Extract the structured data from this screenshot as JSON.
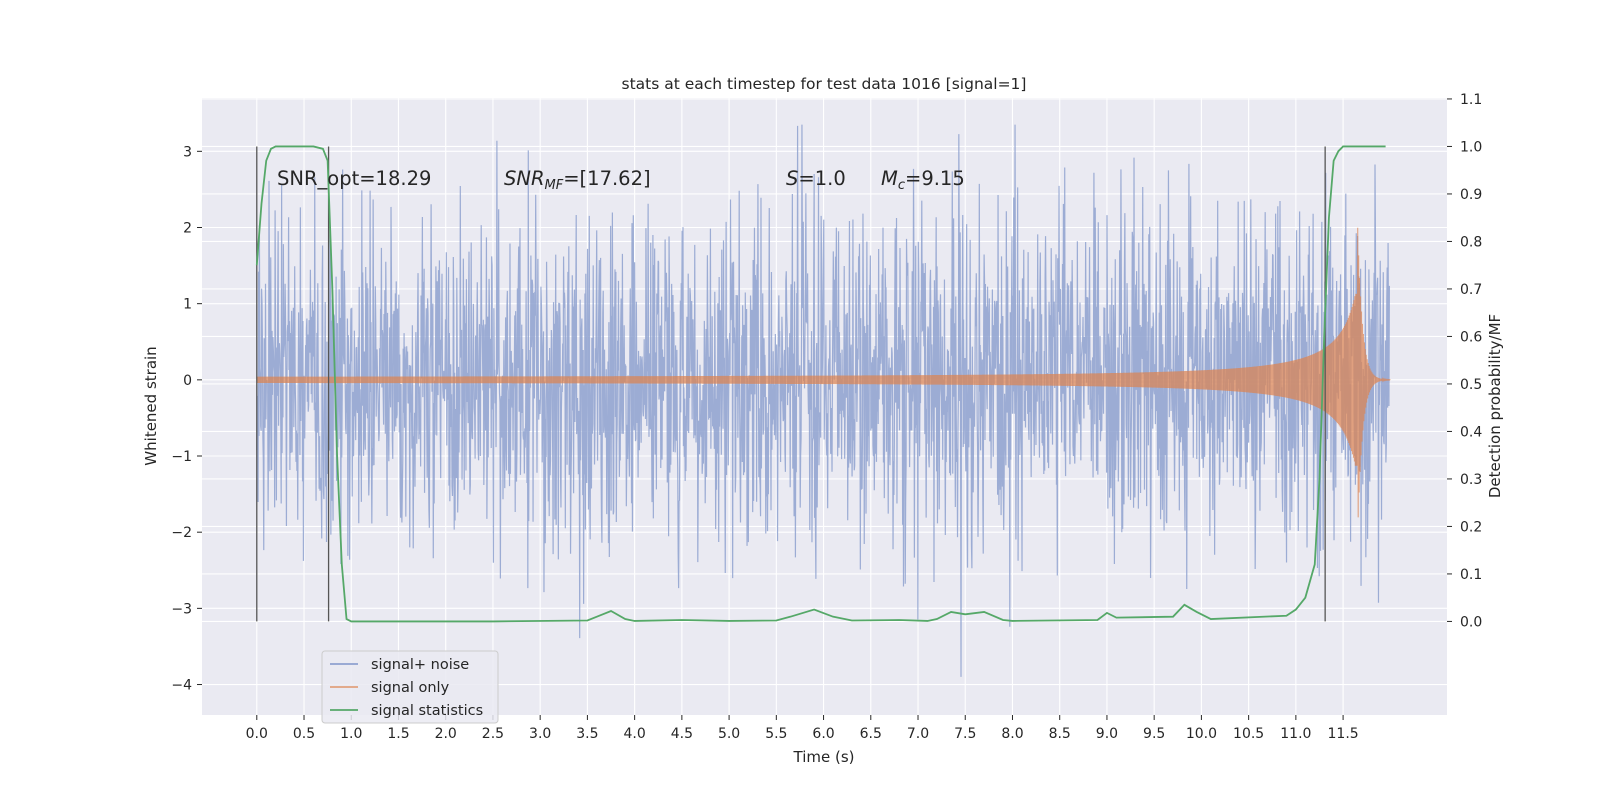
{
  "chart_data": {
    "type": "line",
    "title": "stats at each timestep for test data 1016 [signal=1]",
    "xlabel": "Time (s)",
    "ylabel": "Whitened strain",
    "y2label": "Detection probability/MF",
    "xlim": [
      -0.58,
      12.6
    ],
    "ylim": [
      -4.4,
      3.7
    ],
    "y2lim": [
      -0.197,
      1.102
    ],
    "x_ticks": [
      0.0,
      0.5,
      1.0,
      1.5,
      2.0,
      2.5,
      3.0,
      3.5,
      4.0,
      4.5,
      5.0,
      5.5,
      6.0,
      6.5,
      7.0,
      7.5,
      8.0,
      8.5,
      9.0,
      9.5,
      10.0,
      10.5,
      11.0,
      11.5
    ],
    "x_tick_labels": [
      "0.0",
      "0.5",
      "1.0",
      "1.5",
      "2.0",
      "2.5",
      "3.0",
      "3.5",
      "4.0",
      "4.5",
      "5.0",
      "5.5",
      "6.0",
      "6.5",
      "7.0",
      "7.5",
      "8.0",
      "8.5",
      "9.0",
      "9.5",
      "10.0",
      "10.5",
      "11.0",
      "11.5"
    ],
    "y_ticks": [
      -4,
      -3,
      -2,
      -1,
      0,
      1,
      2,
      3
    ],
    "y_tick_labels": [
      "−4",
      "−3",
      "−2",
      "−1",
      "0",
      "1",
      "2",
      "3"
    ],
    "y2_ticks": [
      0.0,
      0.1,
      0.2,
      0.3,
      0.4,
      0.5,
      0.6,
      0.7,
      0.8,
      0.9,
      1.0,
      1.1
    ],
    "y2_tick_labels": [
      "0.0",
      "0.1",
      "0.2",
      "0.3",
      "0.4",
      "0.5",
      "0.6",
      "0.7",
      "0.8",
      "0.9",
      "1.0",
      "1.1"
    ],
    "grid": true,
    "legend_position": "lower-left",
    "annotations": {
      "snr_opt": "SNR_opt=18.29",
      "snr_mf": "=[17.62]",
      "s_value": "=1.0",
      "mc_value": "=9.15"
    },
    "noise": {
      "x_range": [
        0.0,
        11.99
      ],
      "min": -3.9,
      "max": 3.35
    },
    "chirp": {
      "x_range": [
        0.0,
        12.0
      ],
      "peak_time": 11.65,
      "peak_amplitude": 2.2
    },
    "detection_probability": {
      "x": [
        0.0,
        0.05,
        0.1,
        0.15,
        0.2,
        0.3,
        0.45,
        0.6,
        0.7,
        0.75,
        0.8,
        0.85,
        0.9,
        0.95,
        1.0,
        1.5,
        2.5,
        3.5,
        3.6,
        3.75,
        3.9,
        4.0,
        4.5,
        5.0,
        5.5,
        5.65,
        5.9,
        6.1,
        6.3,
        6.8,
        7.1,
        7.2,
        7.35,
        7.5,
        7.7,
        7.9,
        8.0,
        8.9,
        9.0,
        9.1,
        9.7,
        9.82,
        9.95,
        10.1,
        10.9,
        11.0,
        11.1,
        11.2,
        11.25,
        11.3,
        11.35,
        11.4,
        11.45,
        11.5,
        11.6,
        11.8,
        11.95
      ],
      "y": [
        0.75,
        0.88,
        0.97,
        0.995,
        1.0,
        1.0,
        1.0,
        1.0,
        0.995,
        0.97,
        0.7,
        0.35,
        0.12,
        0.005,
        0.0,
        0.0,
        0.0,
        0.002,
        0.01,
        0.022,
        0.005,
        0.001,
        0.003,
        0.001,
        0.002,
        0.01,
        0.025,
        0.01,
        0.002,
        0.003,
        0.001,
        0.005,
        0.02,
        0.015,
        0.02,
        0.003,
        0.001,
        0.003,
        0.018,
        0.008,
        0.01,
        0.035,
        0.02,
        0.005,
        0.012,
        0.025,
        0.05,
        0.12,
        0.3,
        0.6,
        0.85,
        0.97,
        0.99,
        1.0,
        1.0,
        1.0,
        1.0
      ]
    },
    "vertical_lines": [
      {
        "x": 0.0,
        "y2_range": [
          0.0,
          1.0
        ]
      },
      {
        "x": 0.76,
        "y2_range": [
          0.0,
          1.0
        ]
      },
      {
        "x": 11.31,
        "y2_range": [
          0.0,
          1.0
        ]
      }
    ],
    "series": [
      {
        "name": "signal+ noise",
        "color": "#8ea1cf"
      },
      {
        "name": "signal only",
        "color": "#dd8452"
      },
      {
        "name": "signal statistics",
        "color": "#55a868"
      }
    ],
    "background_color": "#eaeaf2"
  }
}
